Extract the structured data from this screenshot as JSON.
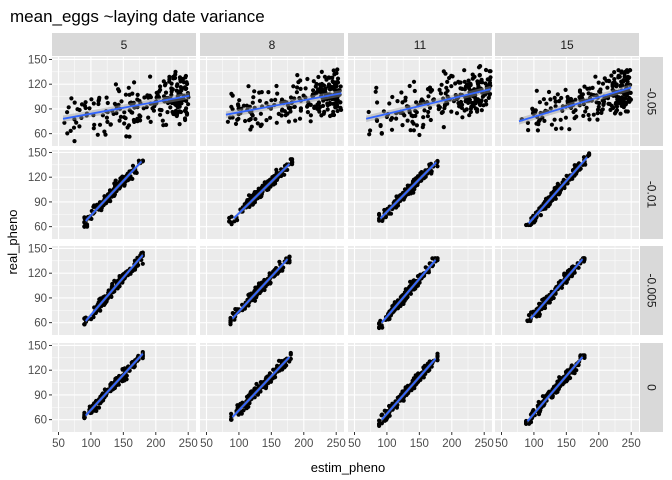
{
  "chart_data": {
    "type": "scatter",
    "title": "mean_eggs ~laying date variance",
    "xlabel": "estim_pheno",
    "ylabel": "real_pheno",
    "facet_cols": [
      "5",
      "8",
      "11",
      "15"
    ],
    "facet_rows": [
      "-0.05",
      "-0.01",
      "-0.005",
      "0"
    ],
    "xlim": [
      40,
      262
    ],
    "ylim": [
      45,
      153
    ],
    "x_ticks": [
      50,
      100,
      150,
      200,
      250
    ],
    "y_ticks": [
      60,
      90,
      120,
      150
    ],
    "x_tick_labels": [
      "50",
      "100",
      "150",
      "200",
      "250"
    ],
    "y_tick_labels": [
      "60",
      "90",
      "120",
      "150"
    ],
    "grid": true,
    "trend": "linear fit with confidence band",
    "colors": {
      "panel_bg": "#ebebeb",
      "grid_major": "#ffffff",
      "strip_bg": "#d9d9d9",
      "points": "#000000",
      "fit_line": "#3366ff",
      "band": "#999999"
    },
    "panels": [
      {
        "row": "-0.05",
        "col": "5",
        "fit": {
          "x": [
            57,
            252
          ],
          "y": [
            78,
            106
          ]
        },
        "point_x_range": [
          57,
          252
        ],
        "point_y_range": [
          48,
          142
        ]
      },
      {
        "row": "-0.05",
        "col": "8",
        "fit": {
          "x": [
            80,
            258
          ],
          "y": [
            83,
            109
          ]
        },
        "point_x_range": [
          80,
          258
        ],
        "point_y_range": [
          57,
          140
        ]
      },
      {
        "row": "-0.05",
        "col": "11",
        "fit": {
          "x": [
            68,
            260
          ],
          "y": [
            78,
            114
          ]
        },
        "point_x_range": [
          68,
          260
        ],
        "point_y_range": [
          48,
          142
        ]
      },
      {
        "row": "-0.05",
        "col": "15",
        "fit": {
          "x": [
            77,
            250
          ],
          "y": [
            75,
            116
          ]
        },
        "point_x_range": [
          77,
          250
        ],
        "point_y_range": [
          62,
          137
        ]
      },
      {
        "row": "-0.01",
        "col": "5",
        "fit": {
          "x": [
            92,
            178
          ],
          "y": [
            67,
            139
          ]
        },
        "point_x_range": [
          90,
          180
        ],
        "point_y_range": [
          60,
          140
        ]
      },
      {
        "row": "-0.01",
        "col": "8",
        "fit": {
          "x": [
            92,
            178
          ],
          "y": [
            70,
            136
          ]
        },
        "point_x_range": [
          85,
          182
        ],
        "point_y_range": [
          52,
          142
        ]
      },
      {
        "row": "-0.01",
        "col": "11",
        "fit": {
          "x": [
            90,
            176
          ],
          "y": [
            70,
            138
          ]
        },
        "point_x_range": [
          88,
          178
        ],
        "point_y_range": [
          60,
          140
        ]
      },
      {
        "row": "-0.01",
        "col": "15",
        "fit": {
          "x": [
            92,
            182
          ],
          "y": [
            64,
            144
          ]
        },
        "point_x_range": [
          88,
          185
        ],
        "point_y_range": [
          62,
          150
        ]
      },
      {
        "row": "-0.005",
        "col": "5",
        "fit": {
          "x": [
            92,
            180
          ],
          "y": [
            62,
            142
          ]
        },
        "point_x_range": [
          90,
          180
        ],
        "point_y_range": [
          58,
          145
        ]
      },
      {
        "row": "-0.005",
        "col": "8",
        "fit": {
          "x": [
            90,
            175
          ],
          "y": [
            65,
            137
          ]
        },
        "point_x_range": [
          87,
          178
        ],
        "point_y_range": [
          58,
          140
        ]
      },
      {
        "row": "-0.005",
        "col": "11",
        "fit": {
          "x": [
            92,
            175
          ],
          "y": [
            60,
            136
          ]
        },
        "point_x_range": [
          88,
          178
        ],
        "point_y_range": [
          52,
          138
        ]
      },
      {
        "row": "-0.005",
        "col": "15",
        "fit": {
          "x": [
            95,
            175
          ],
          "y": [
            65,
            137
          ]
        },
        "point_x_range": [
          90,
          178
        ],
        "point_y_range": [
          62,
          138
        ]
      },
      {
        "row": "0",
        "col": "5",
        "fit": {
          "x": [
            92,
            180
          ],
          "y": [
            65,
            140
          ]
        },
        "point_x_range": [
          90,
          180
        ],
        "point_y_range": [
          62,
          142
        ]
      },
      {
        "row": "0",
        "col": "8",
        "fit": {
          "x": [
            90,
            178
          ],
          "y": [
            63,
            136
          ]
        },
        "point_x_range": [
          88,
          180
        ],
        "point_y_range": [
          60,
          142
        ]
      },
      {
        "row": "0",
        "col": "11",
        "fit": {
          "x": [
            92,
            175
          ],
          "y": [
            60,
            134
          ]
        },
        "point_x_range": [
          88,
          178
        ],
        "point_y_range": [
          52,
          140
        ]
      },
      {
        "row": "0",
        "col": "15",
        "fit": {
          "x": [
            90,
            175
          ],
          "y": [
            58,
            136
          ]
        },
        "point_x_range": [
          88,
          178
        ],
        "point_y_range": [
          55,
          138
        ]
      }
    ]
  }
}
